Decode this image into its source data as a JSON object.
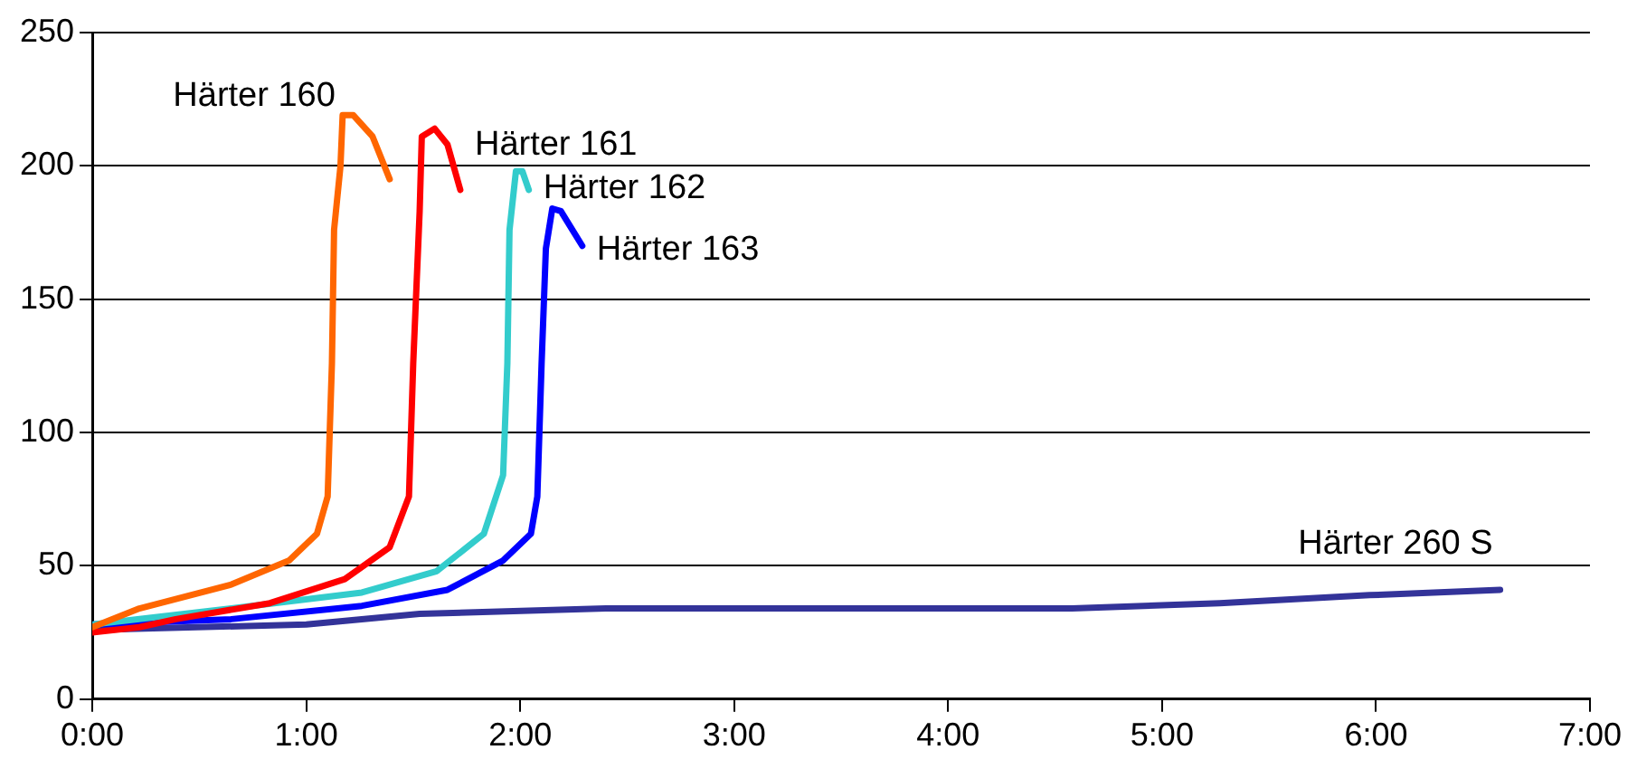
{
  "chart_data": {
    "type": "line",
    "xlim": [
      0,
      7
    ],
    "xticks": [
      {
        "value": 0,
        "label": "0:00"
      },
      {
        "value": 1,
        "label": "1:00"
      },
      {
        "value": 2,
        "label": "2:00"
      },
      {
        "value": 3,
        "label": "3:00"
      },
      {
        "value": 4,
        "label": "4:00"
      },
      {
        "value": 5,
        "label": "5:00"
      },
      {
        "value": 6,
        "label": "6:00"
      },
      {
        "value": 7,
        "label": "7:00"
      }
    ],
    "ylim": [
      0,
      250
    ],
    "yticks": [
      0,
      50,
      100,
      150,
      200,
      250
    ],
    "grid": "y",
    "legend": false,
    "marker": "none",
    "line_style": "solid",
    "series": [
      {
        "name": "Härter 160",
        "color": "#ff6600",
        "x": [
          0,
          0.22,
          0.65,
          0.92,
          1.05,
          1.1,
          1.12,
          1.13,
          1.16,
          1.17,
          1.22,
          1.31,
          1.39
        ],
        "values": [
          27,
          34,
          43,
          52,
          62,
          76,
          126,
          176,
          200,
          219,
          219,
          211,
          195
        ]
      },
      {
        "name": "Härter 161",
        "color": "#ff0000",
        "x": [
          0,
          0.22,
          0.39,
          0.83,
          1.18,
          1.39,
          1.48,
          1.5,
          1.53,
          1.54,
          1.6,
          1.66,
          1.72
        ],
        "values": [
          25,
          27,
          30,
          36,
          45,
          57,
          76,
          126,
          183,
          211,
          214,
          208,
          191
        ]
      },
      {
        "name": "Härter 162",
        "color": "#33cccc",
        "x": [
          0,
          0.65,
          1.26,
          1.61,
          1.83,
          1.92,
          1.94,
          1.95,
          1.98,
          2.01,
          2.04
        ],
        "values": [
          28,
          34,
          40,
          48,
          62,
          84,
          126,
          176,
          198,
          198,
          191
        ]
      },
      {
        "name": "Härter 163",
        "color": "#0000ff",
        "x": [
          0,
          0.65,
          1.26,
          1.66,
          1.92,
          2.05,
          2.08,
          2.1,
          2.12,
          2.15,
          2.19,
          2.29
        ],
        "values": [
          28,
          30,
          35,
          41,
          52,
          62,
          76,
          126,
          169,
          184,
          183,
          170
        ]
      },
      {
        "name": "Härter 260 S",
        "color": "#333399",
        "x": [
          0,
          1.0,
          1.53,
          2.4,
          4.58,
          5.27,
          5.97,
          6.58
        ],
        "values": [
          26,
          28,
          32,
          34,
          34,
          36,
          39,
          41
        ]
      }
    ]
  }
}
